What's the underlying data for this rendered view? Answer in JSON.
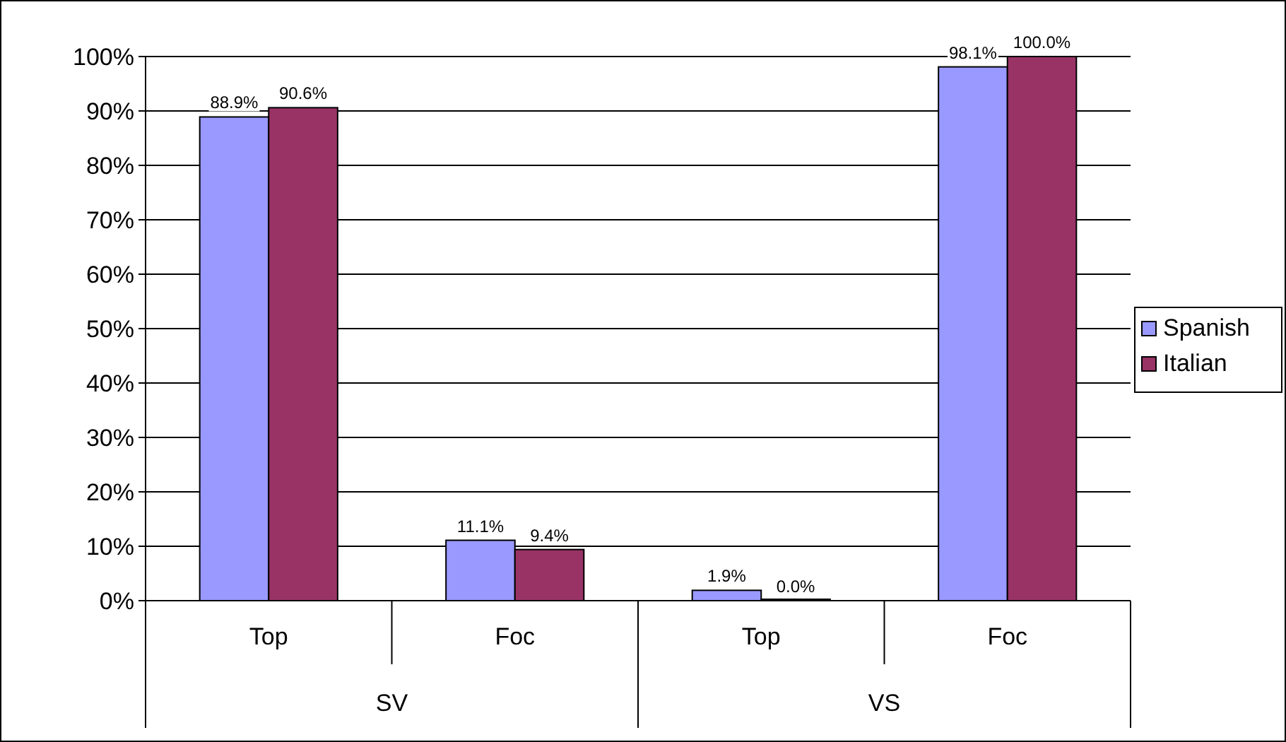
{
  "chart_data": {
    "type": "bar",
    "categories": [
      "Top",
      "Foc",
      "Top",
      "Foc"
    ],
    "series": [
      {
        "name": "Spanish",
        "color": "#9999ff",
        "values": [
          88.9,
          11.1,
          1.9,
          98.1
        ],
        "value_labels": [
          "88.9%",
          "11.1%",
          "1.9%",
          "98.1%"
        ]
      },
      {
        "name": "Italian",
        "color": "#993366",
        "values": [
          90.6,
          9.4,
          0,
          100
        ],
        "value_labels": [
          "90.6%",
          "9.4%",
          "0.0%",
          "100.0%"
        ]
      }
    ],
    "ylim": [
      0,
      100
    ],
    "yticks": [
      {
        "value": 0,
        "label": "0%"
      },
      {
        "value": 10,
        "label": "10%"
      },
      {
        "value": 20,
        "label": "20%"
      },
      {
        "value": 30,
        "label": "30%"
      },
      {
        "value": 40,
        "label": "40%"
      },
      {
        "value": 50,
        "label": "50%"
      },
      {
        "value": 60,
        "label": "60%"
      },
      {
        "value": 70,
        "label": "70%"
      },
      {
        "value": 80,
        "label": "80%"
      },
      {
        "value": 90,
        "label": "90%"
      },
      {
        "value": 100,
        "label": "100%"
      }
    ],
    "grid": "y",
    "legend": "right",
    "annotations": [
      "SV",
      "VS"
    ]
  }
}
